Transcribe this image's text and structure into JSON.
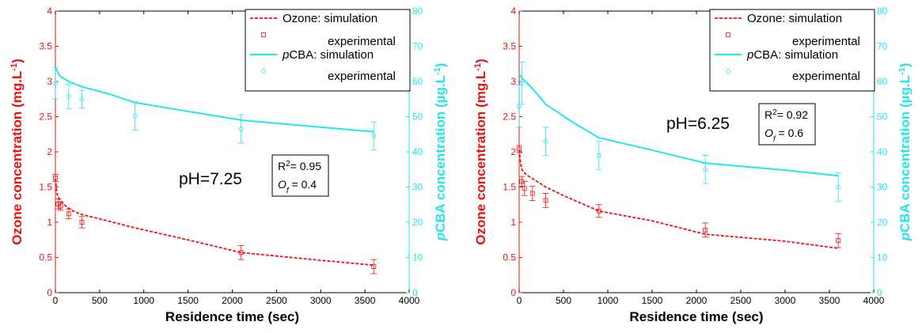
{
  "colors": {
    "ozone": "#ee1111",
    "pcba": "#22e6ee",
    "axis": "#000000"
  },
  "legend": {
    "ozone_name": "Ozone",
    "pcba_name": "CBA",
    "pcba_italic_prefix": "p",
    "simulation_suffix": ": simulation",
    "experimental": "experimental"
  },
  "chart_data": [
    {
      "type": "line",
      "xlabel": "Residence time (sec)",
      "ylabel_left": "Ozone concentration (mg.L",
      "ylabel_left_sup": "-1",
      "ylabel_left_end": ")",
      "ylabel_right_italic": "p",
      "ylabel_right": "CBA concentration (µg.L",
      "ylabel_right_sup": "-1",
      "ylabel_right_end": ")",
      "xlim": [
        0,
        4000
      ],
      "ylim_left": [
        0,
        4
      ],
      "ylim_right": [
        0,
        80
      ],
      "xticks": [
        "0",
        "500",
        "1000",
        "1500",
        "2000",
        "2500",
        "3000",
        "3500",
        "4000"
      ],
      "yticks_left": [
        "0",
        "0.5",
        "1",
        "1.5",
        "2",
        "2.5",
        "3",
        "3.5",
        "4"
      ],
      "yticks_right": [
        "0",
        "10",
        "20",
        "30",
        "40",
        "50",
        "60",
        "70",
        "80"
      ],
      "annotation": "pH=7.25",
      "stats": {
        "r2_label": "R",
        "r2_sup": "2",
        "r2_value": "= 0.95",
        "of_label": "O",
        "of_sub": "f",
        "of_value": "= 0.4"
      },
      "series": [
        {
          "name": "Ozone: simulation",
          "axis": "left",
          "x": [
            0,
            15,
            30,
            60,
            100,
            150,
            200,
            300,
            500,
            900,
            1500,
            2100,
            2500,
            3000,
            3600
          ],
          "y": [
            1.62,
            1.42,
            1.36,
            1.3,
            1.25,
            1.2,
            1.16,
            1.11,
            1.05,
            0.92,
            0.75,
            0.57,
            0.52,
            0.46,
            0.39
          ]
        },
        {
          "name": "Ozone: experimental",
          "axis": "left",
          "x": [
            0,
            30,
            60,
            150,
            300,
            2100,
            3600
          ],
          "y": [
            1.63,
            1.26,
            1.23,
            1.12,
            1.0,
            0.57,
            0.37
          ],
          "err": [
            0.05,
            0.07,
            0.06,
            0.07,
            0.08,
            0.1,
            0.1
          ]
        },
        {
          "name": "pCBA: simulation",
          "axis": "right",
          "x": [
            0,
            50,
            150,
            300,
            600,
            900,
            1500,
            2100,
            3000,
            3600
          ],
          "y": [
            64,
            61.5,
            60,
            58.5,
            56.5,
            54,
            51.5,
            49,
            47,
            45.7
          ]
        },
        {
          "name": "pCBA: experimental",
          "axis": "right",
          "x": [
            0,
            150,
            300,
            900,
            2100,
            3600
          ],
          "y": [
            59.5,
            55.7,
            55,
            50.2,
            46.5,
            44.5
          ],
          "err": [
            4.5,
            3.5,
            2.5,
            4.0,
            4.0,
            4.0
          ]
        }
      ]
    },
    {
      "type": "line",
      "xlabel": "Residence time (sec)",
      "ylabel_left": "Ozone concentration (mg.L",
      "ylabel_left_sup": "-1",
      "ylabel_left_end": ")",
      "ylabel_right_italic": "p",
      "ylabel_right": "CBA concentration (µg.L",
      "ylabel_right_sup": "-1",
      "ylabel_right_end": ")",
      "xlim": [
        0,
        4000
      ],
      "ylim_left": [
        0,
        4
      ],
      "ylim_right": [
        0,
        80
      ],
      "xticks": [
        "0",
        "500",
        "1000",
        "1500",
        "2000",
        "2500",
        "3000",
        "3500",
        "4000"
      ],
      "yticks_left": [
        "0",
        "0.5",
        "1",
        "1.5",
        "2",
        "2.5",
        "3",
        "3.5",
        "4"
      ],
      "yticks_right": [
        "0",
        "10",
        "20",
        "30",
        "40",
        "50",
        "60",
        "70",
        "80"
      ],
      "annotation": "pH=6.25",
      "stats": {
        "r2_label": "R",
        "r2_sup": "2",
        "r2_value": "= 0.92",
        "of_label": "O",
        "of_sub": "f",
        "of_value": "= 0.6"
      },
      "series": [
        {
          "name": "Ozone: simulation",
          "axis": "left",
          "x": [
            0,
            15,
            30,
            60,
            100,
            150,
            300,
            500,
            900,
            1500,
            2100,
            3000,
            3600
          ],
          "y": [
            2.03,
            1.85,
            1.75,
            1.7,
            1.66,
            1.62,
            1.5,
            1.38,
            1.16,
            1.02,
            0.83,
            0.73,
            0.63
          ]
        },
        {
          "name": "Ozone: experimental",
          "axis": "left",
          "x": [
            0,
            30,
            60,
            150,
            300,
            900,
            2100,
            3600
          ],
          "y": [
            2.04,
            1.58,
            1.48,
            1.41,
            1.31,
            1.16,
            0.89,
            0.74
          ],
          "err": [
            0.05,
            0.07,
            0.1,
            0.1,
            0.1,
            0.09,
            0.1,
            0.1
          ]
        },
        {
          "name": "pCBA: simulation",
          "axis": "right",
          "x": [
            0,
            50,
            150,
            300,
            600,
            900,
            1500,
            2100,
            3000,
            3600
          ],
          "y": [
            62,
            60.5,
            58,
            53.5,
            48.5,
            44,
            40.5,
            36.8,
            34.8,
            33.2
          ]
        },
        {
          "name": "pCBA: experimental",
          "axis": "right",
          "x": [
            0,
            30,
            300,
            900,
            2100,
            3600
          ],
          "y": [
            53,
            59.5,
            43,
            39,
            35,
            30
          ],
          "err": [
            6,
            6,
            4,
            4,
            4,
            4
          ]
        }
      ]
    }
  ]
}
